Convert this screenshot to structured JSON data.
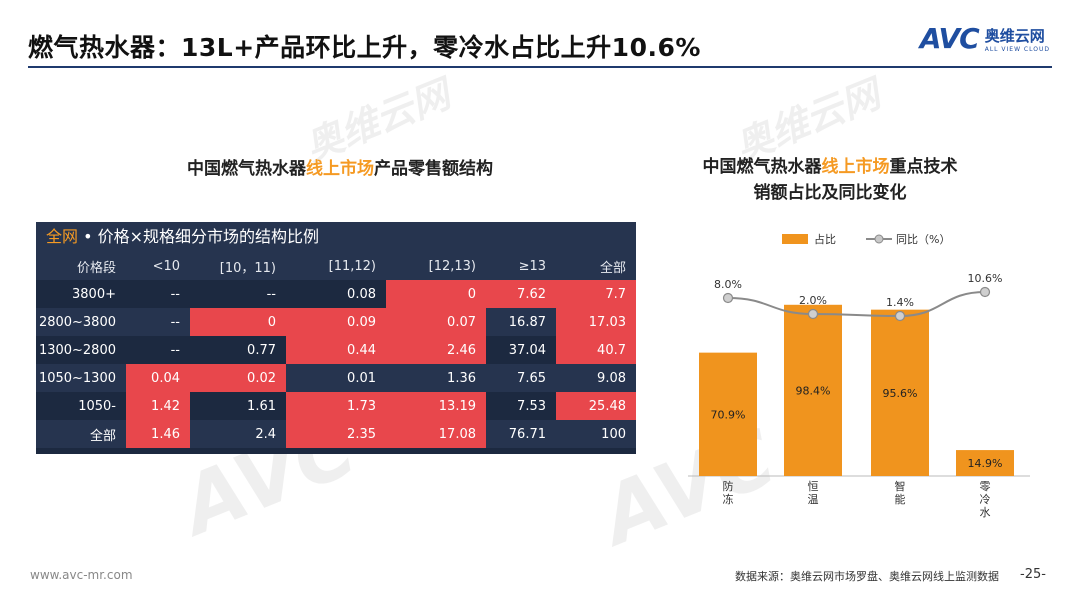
{
  "header": {
    "title": "燃气热水器：13L+产品环比上升，零冷水占比上升10.6%",
    "logo_mark": "AVC",
    "logo_cn": "奥维云网",
    "logo_en": "ALL VIEW CLOUD"
  },
  "watermark": {
    "mark": "AVC",
    "cn": "奥维云网",
    "en": "ALL VIEW CLOUD"
  },
  "left_title": {
    "pre": "中国燃气热水器",
    "hl": "线上市场",
    "post": "产品零售额结构"
  },
  "right_title": {
    "pre": "中国燃气热水器",
    "hl": "线上市场",
    "post": "重点技术",
    "line2": "销额占比及同比变化"
  },
  "table": {
    "scope": "全网",
    "caption": " • 价格×规格细分市场的结构比例",
    "columns": [
      "价格段",
      "<10",
      "[10，11)",
      "[11,12)",
      "[12,13)",
      "≥13",
      "全部"
    ],
    "rows": [
      {
        "label": "3800+",
        "cells": [
          "--",
          "--",
          "0.08",
          "0",
          "7.62",
          "7.7"
        ],
        "hl": [
          false,
          false,
          false,
          true,
          true,
          true
        ]
      },
      {
        "label": "2800~3800",
        "cells": [
          "--",
          "0",
          "0.09",
          "0.07",
          "16.87",
          "17.03"
        ],
        "hl": [
          false,
          true,
          true,
          true,
          false,
          true
        ]
      },
      {
        "label": "1300~2800",
        "cells": [
          "--",
          "0.77",
          "0.44",
          "2.46",
          "37.04",
          "40.7"
        ],
        "hl": [
          false,
          false,
          true,
          true,
          false,
          true
        ]
      },
      {
        "label": "1050~1300",
        "cells": [
          "0.04",
          "0.02",
          "0.01",
          "1.36",
          "7.65",
          "9.08"
        ],
        "hl": [
          true,
          true,
          false,
          false,
          false,
          false
        ]
      },
      {
        "label": "1050-",
        "cells": [
          "1.42",
          "1.61",
          "1.73",
          "13.19",
          "7.53",
          "25.48"
        ],
        "hl": [
          true,
          false,
          true,
          true,
          false,
          true
        ]
      },
      {
        "label": "全部",
        "cells": [
          "1.46",
          "2.4",
          "2.35",
          "17.08",
          "76.71",
          "100"
        ],
        "hl": [
          true,
          false,
          true,
          true,
          false,
          false
        ]
      }
    ]
  },
  "chart_data": {
    "type": "bar",
    "title": "中国燃气热水器线上市场重点技术销额占比及同比变化",
    "categories": [
      "防冻",
      "恒温",
      "智能",
      "零冷水"
    ],
    "series": [
      {
        "name": "占比",
        "kind": "bar",
        "values": [
          70.9,
          98.4,
          95.6,
          14.9
        ],
        "labels": [
          "70.9%",
          "98.4%",
          "95.6%",
          "14.9%"
        ],
        "color": "#f0941e"
      },
      {
        "name": "同比（%）",
        "kind": "line",
        "values": [
          8.0,
          2.0,
          1.4,
          10.6
        ],
        "labels": [
          "8.0%",
          "2.0%",
          "1.4%",
          "10.6%"
        ],
        "color": "#8a8a8a"
      }
    ],
    "ylim": [
      0,
      100
    ],
    "legend": "top"
  },
  "footer": {
    "website": "www.avc-mr.com",
    "source": "数据来源：奥维云网市场罗盘、奥维云网线上监测数据",
    "page": "-25-"
  }
}
